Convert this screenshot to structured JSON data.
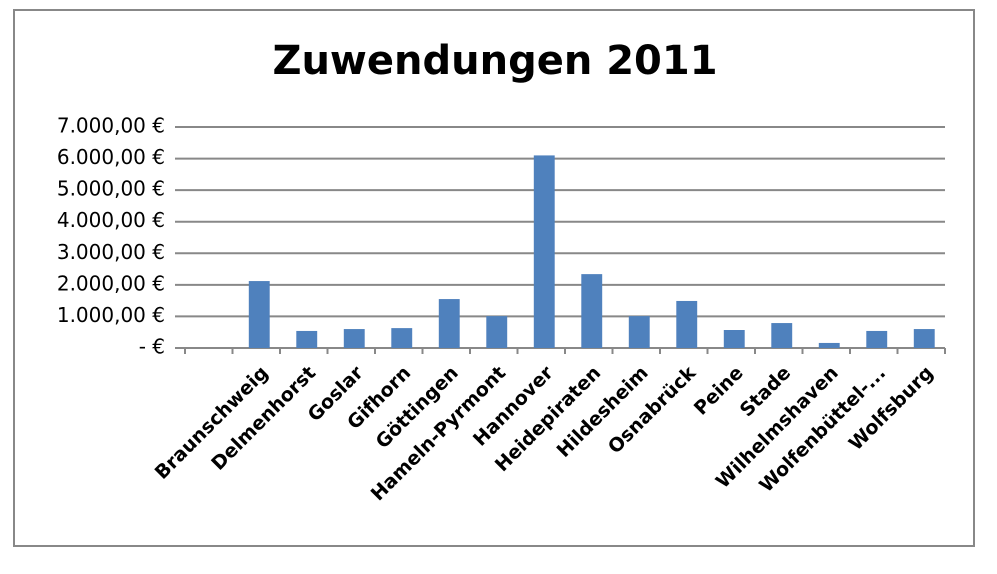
{
  "chart_data": {
    "type": "bar",
    "title": "Zuwendungen 2011",
    "categories": [
      null,
      "Braunschweig",
      "Delmenhorst",
      "Goslar",
      "Gifhorn",
      "Göttingen",
      "Hameln-Pyrmont",
      "Hannover",
      "Heidepiraten",
      "Hildesheim",
      "Osnabrück",
      "Peine",
      "Stade",
      "Wilhelmshaven",
      "Wolfenbüttel-...",
      "Wolfsburg"
    ],
    "values": [
      null,
      2120,
      540,
      600,
      630,
      1550,
      1010,
      6100,
      2340,
      1010,
      1490,
      570,
      790,
      160,
      540,
      600
    ],
    "color": "#4f81bd",
    "ylim": [
      0,
      7000
    ],
    "yticks": [
      {
        "value": 0,
        "label": "-   €"
      },
      {
        "value": 1000,
        "label": "1.000,00 €"
      },
      {
        "value": 2000,
        "label": "2.000,00 €"
      },
      {
        "value": 3000,
        "label": "3.000,00 €"
      },
      {
        "value": 4000,
        "label": "4.000,00 €"
      },
      {
        "value": 5000,
        "label": "5.000,00 €"
      },
      {
        "value": 6000,
        "label": "6.000,00 €"
      },
      {
        "value": 7000,
        "label": "7.000,00 €"
      }
    ],
    "grid": true
  }
}
